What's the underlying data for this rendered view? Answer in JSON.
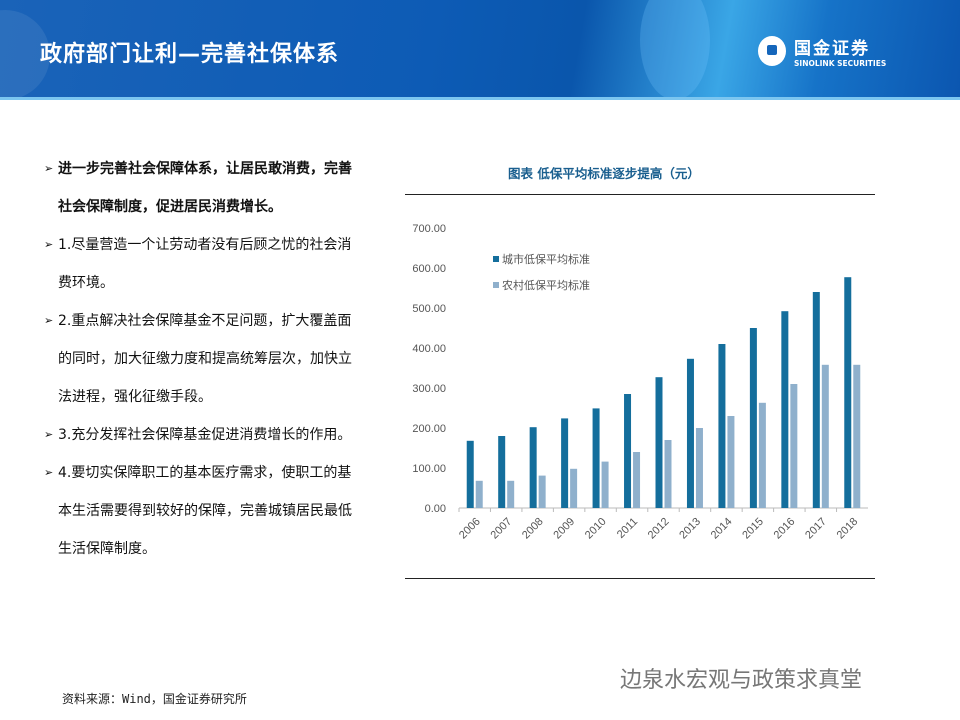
{
  "header": {
    "title": "政府部门让利—完善社保体系",
    "logo_cn": "国金证券",
    "logo_en": "SINOLINK SECURITIES"
  },
  "bullets": [
    "进一步完善社会保障体系，让居民敢消费，完善社会保障制度，促进居民消费增长。",
    "1.尽量营造一个让劳动者没有后顾之忧的社会消费环境。",
    "2.重点解决社会保障基金不足问题，扩大覆盖面的同时，加大征缴力度和提高统筹层次，加快立法进程，强化征缴手段。",
    "3.充分发挥社会保障基金促进消费增长的作用。",
    "4.要切实保障职工的基本医疗需求，使职工的基本生活需要得到较好的保障，完善城镇居民最低生活保障制度。"
  ],
  "footer": {
    "source": "资料来源：Wind，国金证券研究所",
    "watermark": "边泉水宏观与政策求真堂"
  },
  "chart_data": {
    "type": "bar",
    "title": "图表  低保平均标准逐步提高（元）",
    "categories": [
      "2006",
      "2007",
      "2008",
      "2009",
      "2010",
      "2011",
      "2012",
      "2013",
      "2014",
      "2015",
      "2016",
      "2017",
      "2018"
    ],
    "series": [
      {
        "name": "城市低保平均标准",
        "color": "#146e9c",
        "values": [
          168,
          180,
          202,
          224,
          249,
          285,
          327,
          373,
          410,
          450,
          492,
          540,
          577
        ]
      },
      {
        "name": "农村低保平均标准",
        "color": "#8fb0cc",
        "values": [
          68,
          68,
          81,
          98,
          116,
          140,
          170,
          200,
          230,
          263,
          310,
          358,
          358
        ]
      }
    ],
    "ylim": [
      0,
      700
    ],
    "yticks": [
      "0.00",
      "100.00",
      "200.00",
      "300.00",
      "400.00",
      "500.00",
      "600.00",
      "700.00"
    ],
    "legend": "top-left",
    "grid": false
  }
}
